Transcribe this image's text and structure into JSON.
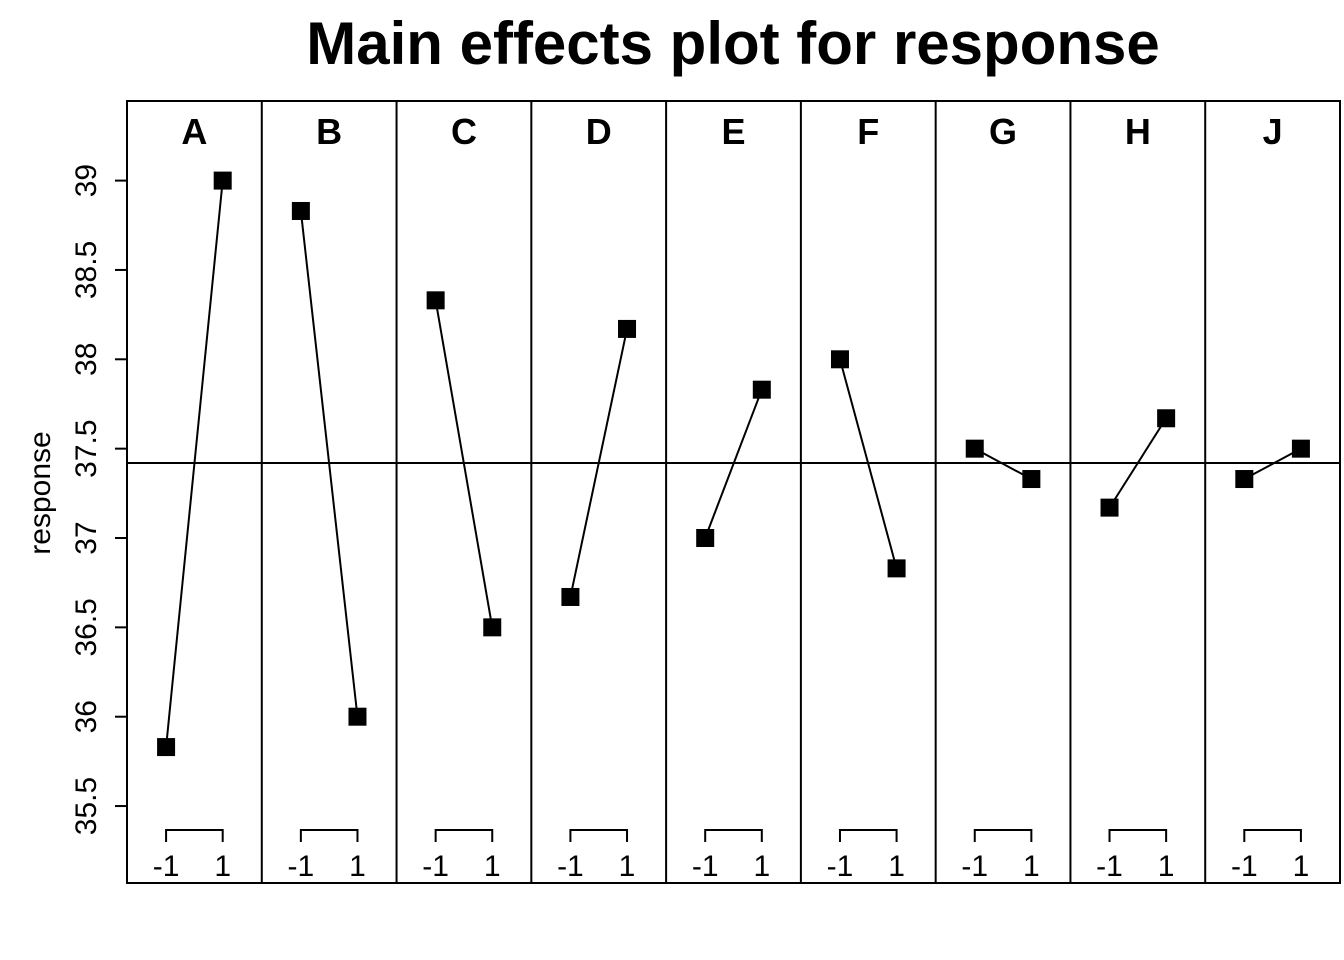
{
  "chart_data": {
    "type": "line",
    "title": "Main effects plot for response",
    "ylabel": "response",
    "xlabel": "",
    "ylim": [
      35.3,
      39.45
    ],
    "y_ticks": [
      "35.5",
      "36",
      "36.5",
      "37",
      "37.5",
      "38",
      "38.5",
      "39"
    ],
    "x_levels": [
      "-1",
      "1"
    ],
    "grand_mean": 37.42,
    "grid": false,
    "marker": "square",
    "colors": {
      "line": "#000000",
      "marker": "#000000",
      "background": "#ffffff"
    },
    "panels": [
      {
        "factor": "A",
        "values": [
          35.83,
          39.0
        ]
      },
      {
        "factor": "B",
        "values": [
          38.83,
          36.0
        ]
      },
      {
        "factor": "C",
        "values": [
          38.33,
          36.5
        ]
      },
      {
        "factor": "D",
        "values": [
          36.67,
          38.17
        ]
      },
      {
        "factor": "E",
        "values": [
          37.0,
          37.83
        ]
      },
      {
        "factor": "F",
        "values": [
          38.0,
          36.83
        ]
      },
      {
        "factor": "G",
        "values": [
          37.5,
          37.33
        ]
      },
      {
        "factor": "H",
        "values": [
          37.17,
          37.67
        ]
      },
      {
        "factor": "J",
        "values": [
          37.33,
          37.5
        ]
      }
    ]
  }
}
